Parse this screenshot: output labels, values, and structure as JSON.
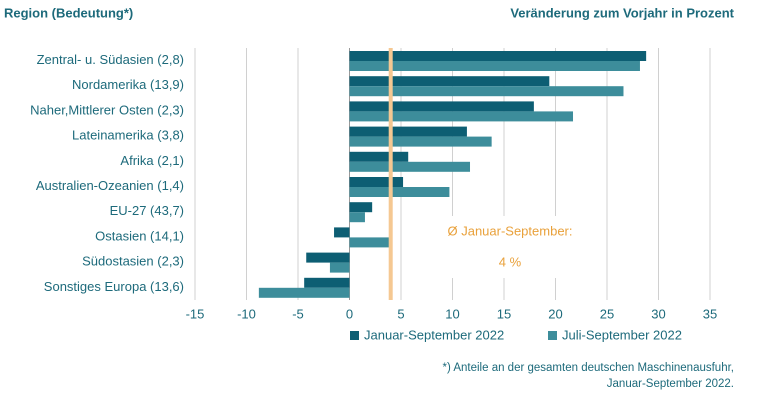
{
  "chart_data": {
    "type": "bar",
    "orientation": "horizontal",
    "header_left": "Region (Bedeutung*)",
    "header_right": "Veränderung zum Vorjahr in Prozent",
    "categories": [
      "Zentral- u. Südasien (2,8)",
      "Nordamerika (13,9)",
      "Naher,Mittlerer Osten (2,3)",
      "Lateinamerika (3,8)",
      "Afrika (2,1)",
      "Australien-Ozeanien (1,4)",
      "EU-27 (43,7)",
      "Ostasien (14,1)",
      "Südostasien (2,3)",
      "Sonstiges Europa (13,6)"
    ],
    "series": [
      {
        "name": "Januar-September 2022",
        "color": "#0d5e73",
        "values": [
          28.8,
          19.4,
          17.9,
          11.4,
          5.7,
          5.2,
          2.2,
          -1.5,
          -4.2,
          -4.4
        ]
      },
      {
        "name": "Juli-September 2022",
        "color": "#3d8d9b",
        "values": [
          28.2,
          26.6,
          21.7,
          13.8,
          11.7,
          9.7,
          1.5,
          3.9,
          -1.9,
          -8.8
        ]
      }
    ],
    "xlim": [
      -15,
      35
    ],
    "xticks": [
      -15,
      -10,
      -5,
      0,
      5,
      10,
      15,
      20,
      25,
      30,
      35
    ],
    "grid": true,
    "average": {
      "label": "Ø Januar-September:",
      "value": 4,
      "value_label": "4 %",
      "color": "#f5c892"
    },
    "footnote": [
      "*) Anteile an der gesamten deutschen Maschinenausfuhr,",
      "Januar-September 2022."
    ]
  }
}
